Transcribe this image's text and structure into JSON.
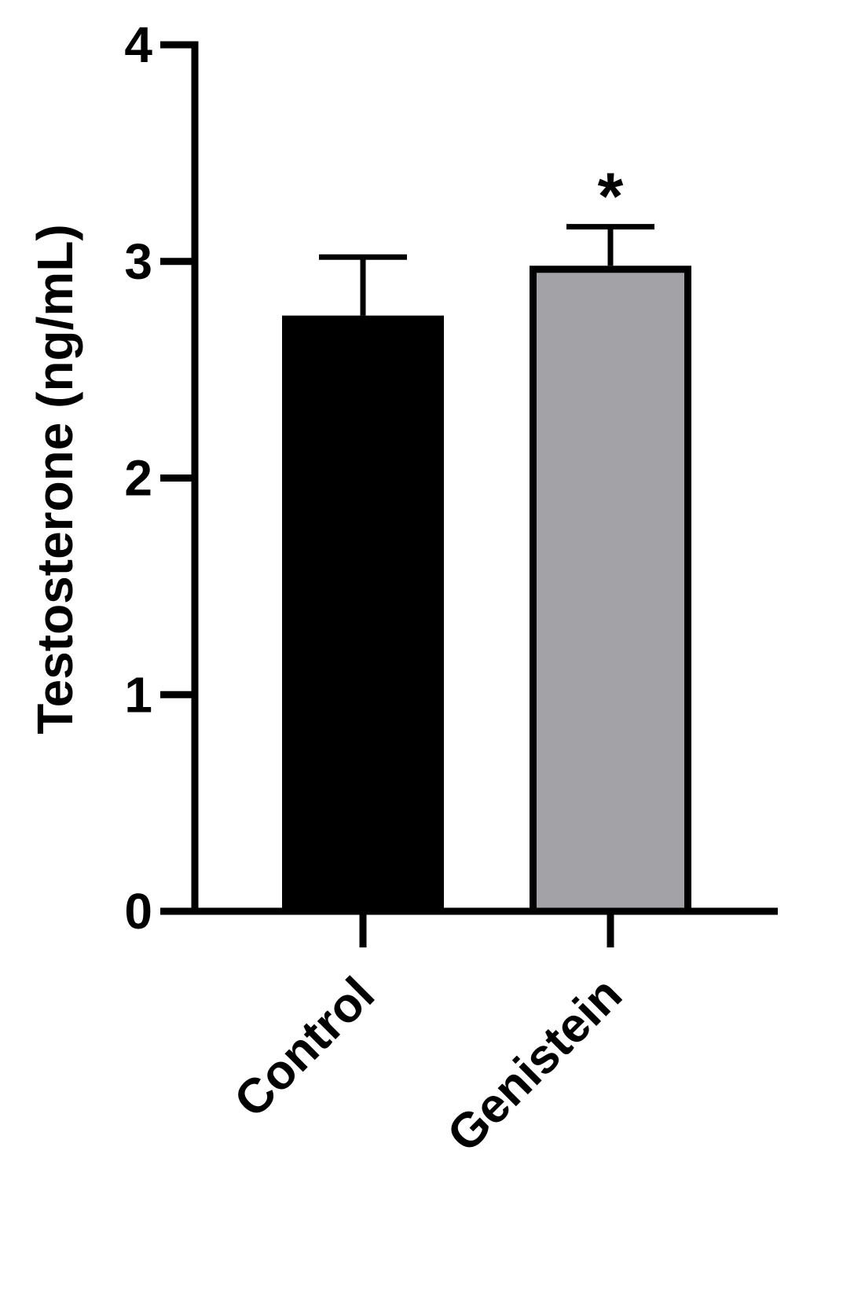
{
  "chart_data": {
    "type": "bar",
    "y_label": "Testosterone (ng/mL)",
    "categories": [
      "Control",
      "Genistein"
    ],
    "values": [
      2.75,
      2.98
    ],
    "errors": [
      0.27,
      0.18
    ],
    "colors": [
      "#000000",
      "#a3a2a7"
    ],
    "edge_color": "#000000",
    "significance_labels": [
      null,
      "*"
    ],
    "ylim": [
      0,
      4
    ],
    "yticks": [
      0,
      1,
      2,
      3,
      4
    ],
    "grid": false
  }
}
